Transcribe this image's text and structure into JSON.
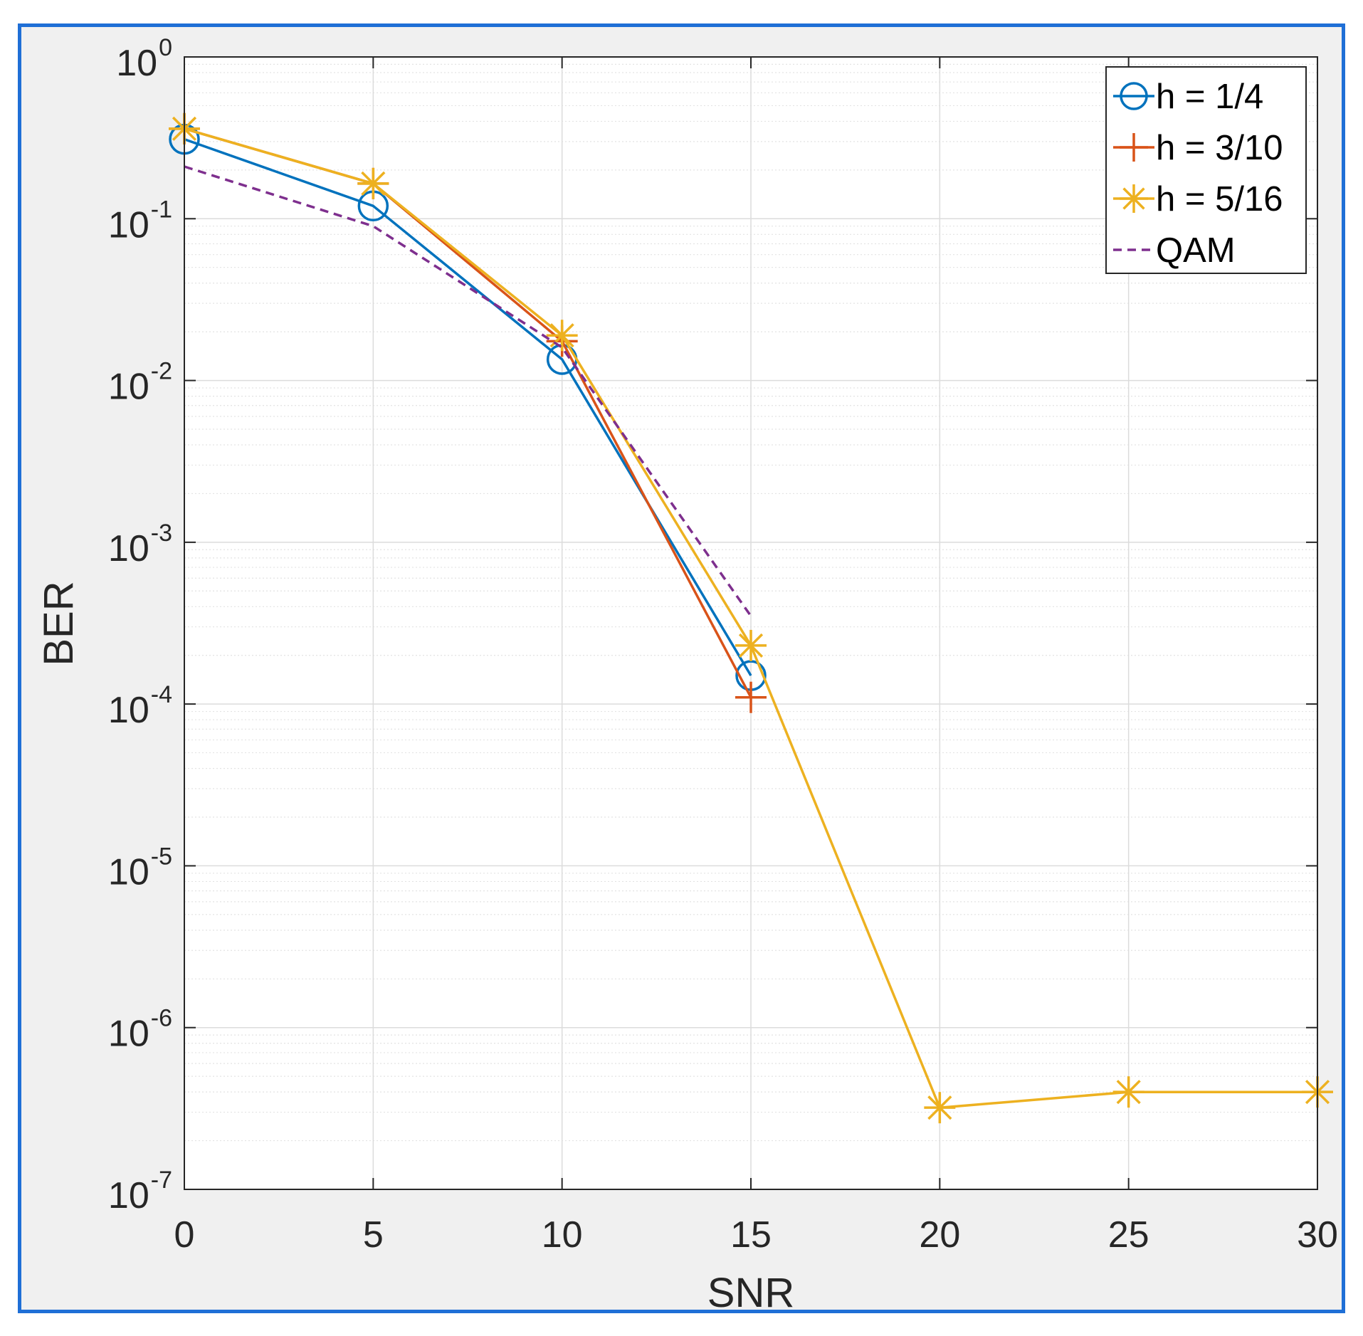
{
  "chart_data": {
    "type": "line",
    "title": "",
    "xlabel": "SNR",
    "ylabel": "BER",
    "xlim": [
      0,
      30
    ],
    "ylim": [
      1e-07,
      1
    ],
    "yscale": "log",
    "grid": true,
    "legend_position": "top-right",
    "x_ticks": [
      "0",
      "5",
      "10",
      "15",
      "20",
      "25",
      "30"
    ],
    "y_ticks": [
      {
        "base": "10",
        "exp": "0"
      },
      {
        "base": "10",
        "exp": "-1"
      },
      {
        "base": "10",
        "exp": "-2"
      },
      {
        "base": "10",
        "exp": "-3"
      },
      {
        "base": "10",
        "exp": "-4"
      },
      {
        "base": "10",
        "exp": "-5"
      },
      {
        "base": "10",
        "exp": "-6"
      },
      {
        "base": "10",
        "exp": "-7"
      }
    ],
    "series": [
      {
        "name": "h = 1/4",
        "color": "#0072bd",
        "marker": "circle",
        "dash": "solid",
        "x": [
          0,
          5,
          10,
          15
        ],
        "y": [
          0.31,
          0.12,
          0.0135,
          0.00015
        ]
      },
      {
        "name": "h = 3/10",
        "color": "#d95319",
        "marker": "plus",
        "dash": "solid",
        "x": [
          0,
          5,
          10,
          15
        ],
        "y": [
          0.36,
          0.165,
          0.0175,
          0.00011
        ]
      },
      {
        "name": "h = 5/16",
        "color": "#edb120",
        "marker": "asterisk",
        "dash": "solid",
        "x": [
          0,
          5,
          10,
          15,
          20,
          25,
          30
        ],
        "y": [
          0.36,
          0.165,
          0.019,
          0.00023,
          3.2e-07,
          4e-07,
          4e-07
        ]
      },
      {
        "name": "QAM",
        "color": "#7e2f8e",
        "marker": "none",
        "dash": "dashed",
        "x": [
          0,
          5,
          10,
          15
        ],
        "y": [
          0.21,
          0.09,
          0.016,
          0.00035
        ]
      }
    ]
  }
}
